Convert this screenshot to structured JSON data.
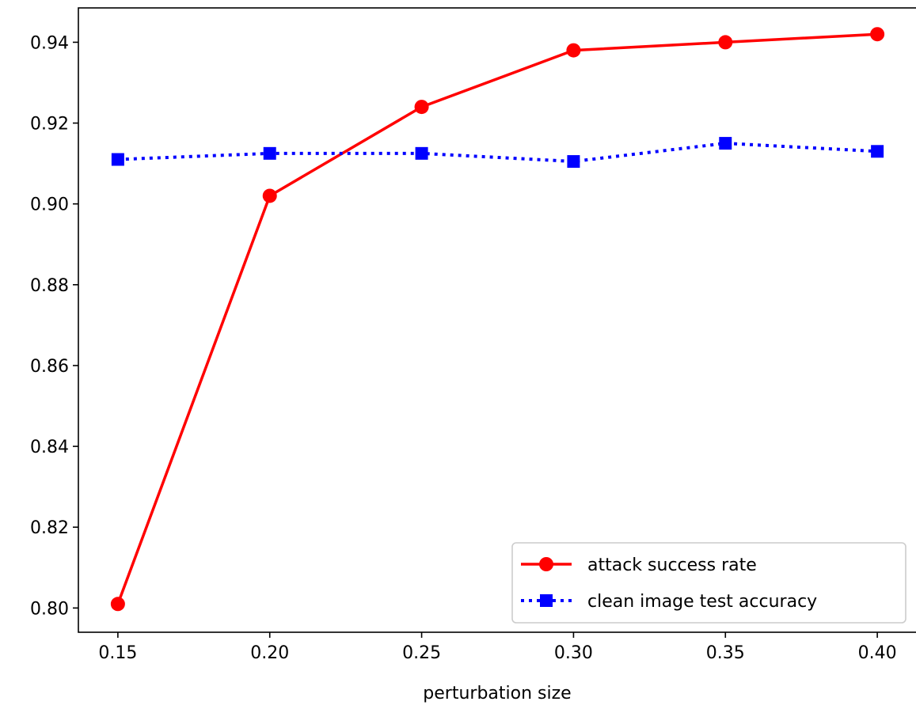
{
  "chart_data": {
    "type": "line",
    "title": "",
    "xlabel": "perturbation size",
    "ylabel": "",
    "x": [
      0.15,
      0.2,
      0.25,
      0.3,
      0.35,
      0.4
    ],
    "xlim": [
      0.137,
      0.413
    ],
    "ylim": [
      0.794,
      0.9485
    ],
    "xticks": [
      "0.15",
      "0.20",
      "0.25",
      "0.30",
      "0.35",
      "0.40"
    ],
    "xtick_values": [
      0.15,
      0.2,
      0.25,
      0.3,
      0.35,
      0.4
    ],
    "yticks": [
      "0.80",
      "0.82",
      "0.84",
      "0.86",
      "0.88",
      "0.90",
      "0.92",
      "0.94"
    ],
    "ytick_values": [
      0.8,
      0.82,
      0.84,
      0.86,
      0.88,
      0.9,
      0.92,
      0.94
    ],
    "grid": false,
    "legend_position": "lower-right",
    "series": [
      {
        "name": "attack success rate",
        "values": [
          0.801,
          0.902,
          0.924,
          0.938,
          0.94,
          0.942
        ],
        "color": "#ff0000",
        "line_style": "solid",
        "marker": "circle"
      },
      {
        "name": "clean image test accuracy",
        "values": [
          0.911,
          0.9125,
          0.9125,
          0.9105,
          0.915,
          0.913
        ],
        "color": "#0000ff",
        "line_style": "dotted",
        "marker": "square"
      }
    ]
  }
}
